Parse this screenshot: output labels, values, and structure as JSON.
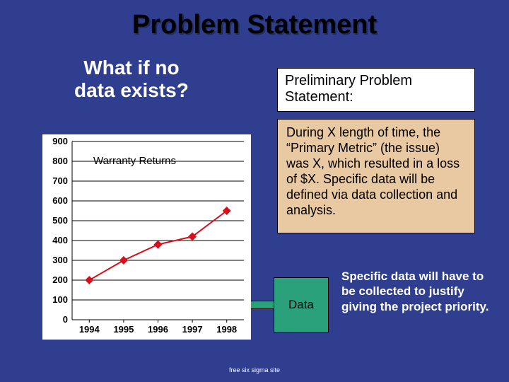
{
  "slide": {
    "title": "Problem Statement",
    "question_line1": "What if no",
    "question_line2": "data exists?",
    "background_color": "#2f3e8f"
  },
  "callout_preliminary": {
    "text": "Preliminary Problem Statement:",
    "bg": "#ffffff"
  },
  "callout_body": {
    "text": "During X length of time, the “Primary Metric” (the issue) was X, which resulted in a loss of $X. Specific data will be defined via data collection and analysis.",
    "bg": "#e9c9a2"
  },
  "callout_action": {
    "text": "Specific data will have to be collected to justify giving the project priority."
  },
  "data_box": {
    "label": "Data",
    "bg": "#2aa17a"
  },
  "chart": {
    "type": "line",
    "title": "Warranty Returns",
    "title_fontsize": 15,
    "background_color": "#ffffff",
    "plot_bg": "#ffffff",
    "grid_color": "#000000",
    "axis_color": "#000000",
    "line_color": "#d90e1a",
    "marker_color": "#d90e1a",
    "marker_style": "diamond",
    "marker_size": 6,
    "line_width": 2,
    "categories": [
      "1994",
      "1995",
      "1996",
      "1997",
      "1998"
    ],
    "values": [
      200,
      300,
      380,
      420,
      550
    ],
    "ylim": [
      0,
      900
    ],
    "ytick_step": 100,
    "yticks": [
      0,
      100,
      200,
      300,
      400,
      500,
      600,
      700,
      800,
      900
    ],
    "tick_fontsize": 13,
    "tick_fontweight": "bold"
  },
  "footer": {
    "text": "free six sigma site"
  }
}
